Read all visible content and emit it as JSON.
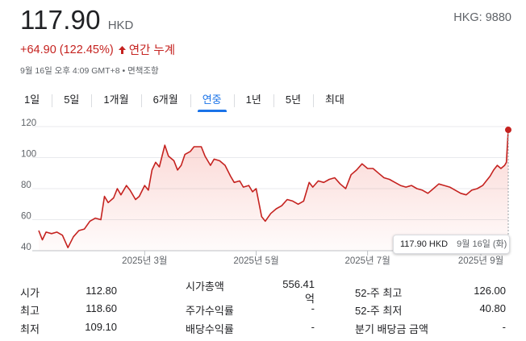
{
  "quote": {
    "price": "117.90",
    "currency": "HKD",
    "ticker": "HKG: 9880",
    "change": "+64.90 (122.45%)",
    "change_period": "연간 누계",
    "timestamp": "9월 16일 오후 4:09 GMT+8 • 면책조항"
  },
  "tabs": [
    {
      "label": "1일"
    },
    {
      "label": "5일"
    },
    {
      "label": "1개월"
    },
    {
      "label": "6개월"
    },
    {
      "label": "연중",
      "active": true
    },
    {
      "label": "1년"
    },
    {
      "label": "5년"
    },
    {
      "label": "최대"
    }
  ],
  "tooltip": {
    "price": "117.90 HKD",
    "date": "9월 16일 (화)"
  },
  "colors": {
    "line": "#c5221f",
    "fill": "#f6d7d6",
    "accent": "#1a73e8",
    "grid": "#dadce0"
  },
  "stats": [
    [
      {
        "label": "시가",
        "value": "112.80"
      },
      {
        "label": "시가총액",
        "value": "556.41억"
      },
      {
        "label": "52-주 최고",
        "value": "126.00"
      }
    ],
    [
      {
        "label": "최고",
        "value": "118.60"
      },
      {
        "label": "주가수익률",
        "value": "-"
      },
      {
        "label": "52-주 최저",
        "value": "40.80"
      }
    ],
    [
      {
        "label": "최저",
        "value": "109.10"
      },
      {
        "label": "배당수익률",
        "value": "-"
      },
      {
        "label": "분기 배당금 금액",
        "value": "-"
      }
    ]
  ],
  "chart_data": {
    "type": "line",
    "y_ticks": [
      40,
      60,
      80,
      100,
      120
    ],
    "ylim": [
      40,
      120
    ],
    "x_ticks": [
      "2025년 3월",
      "2025년 5월",
      "2025년 7월",
      "2025년 9월"
    ],
    "x_tick_dates": [
      "2025-03-01",
      "2025-05-01",
      "2025-07-01",
      "2025-09-01"
    ],
    "xlim": [
      "2025-01-02",
      "2025-09-16"
    ],
    "grid": true,
    "series": [
      {
        "values": [
          [
            "2025-01-02",
            53
          ],
          [
            "2025-01-04",
            47
          ],
          [
            "2025-01-06",
            52
          ],
          [
            "2025-01-09",
            51
          ],
          [
            "2025-01-12",
            52
          ],
          [
            "2025-01-15",
            50
          ],
          [
            "2025-01-18",
            42
          ],
          [
            "2025-01-21",
            49
          ],
          [
            "2025-01-24",
            53
          ],
          [
            "2025-01-27",
            54
          ],
          [
            "2025-01-30",
            59
          ],
          [
            "2025-02-02",
            61
          ],
          [
            "2025-02-05",
            60
          ],
          [
            "2025-02-07",
            75
          ],
          [
            "2025-02-09",
            71
          ],
          [
            "2025-02-12",
            74
          ],
          [
            "2025-02-14",
            80
          ],
          [
            "2025-02-16",
            76
          ],
          [
            "2025-02-19",
            82
          ],
          [
            "2025-02-21",
            79
          ],
          [
            "2025-02-24",
            73
          ],
          [
            "2025-02-26",
            75
          ],
          [
            "2025-03-01",
            82
          ],
          [
            "2025-03-03",
            79
          ],
          [
            "2025-03-05",
            92
          ],
          [
            "2025-03-07",
            97
          ],
          [
            "2025-03-09",
            94
          ],
          [
            "2025-03-12",
            108
          ],
          [
            "2025-03-14",
            101
          ],
          [
            "2025-03-17",
            98
          ],
          [
            "2025-03-19",
            92
          ],
          [
            "2025-03-21",
            95
          ],
          [
            "2025-03-23",
            102
          ],
          [
            "2025-03-26",
            104
          ],
          [
            "2025-03-28",
            107
          ],
          [
            "2025-04-01",
            107
          ],
          [
            "2025-04-03",
            101
          ],
          [
            "2025-04-06",
            95
          ],
          [
            "2025-04-08",
            99
          ],
          [
            "2025-04-11",
            98
          ],
          [
            "2025-04-14",
            95
          ],
          [
            "2025-04-17",
            88
          ],
          [
            "2025-04-19",
            84
          ],
          [
            "2025-04-22",
            85
          ],
          [
            "2025-04-24",
            81
          ],
          [
            "2025-04-27",
            82
          ],
          [
            "2025-04-29",
            78
          ],
          [
            "2025-05-01",
            80
          ],
          [
            "2025-05-04",
            62
          ],
          [
            "2025-05-06",
            59
          ],
          [
            "2025-05-09",
            64
          ],
          [
            "2025-05-12",
            67
          ],
          [
            "2025-05-15",
            69
          ],
          [
            "2025-05-18",
            73
          ],
          [
            "2025-05-21",
            72
          ],
          [
            "2025-05-24",
            70
          ],
          [
            "2025-05-27",
            72
          ],
          [
            "2025-05-30",
            84
          ],
          [
            "2025-06-01",
            81
          ],
          [
            "2025-06-04",
            85
          ],
          [
            "2025-06-07",
            84
          ],
          [
            "2025-06-10",
            86
          ],
          [
            "2025-06-13",
            87
          ],
          [
            "2025-06-16",
            83
          ],
          [
            "2025-06-19",
            80
          ],
          [
            "2025-06-22",
            89
          ],
          [
            "2025-06-25",
            92
          ],
          [
            "2025-06-28",
            96
          ],
          [
            "2025-07-01",
            93
          ],
          [
            "2025-07-04",
            93
          ],
          [
            "2025-07-07",
            90
          ],
          [
            "2025-07-10",
            87
          ],
          [
            "2025-07-13",
            86
          ],
          [
            "2025-07-16",
            84
          ],
          [
            "2025-07-19",
            82
          ],
          [
            "2025-07-22",
            81
          ],
          [
            "2025-07-25",
            82
          ],
          [
            "2025-07-28",
            80
          ],
          [
            "2025-07-31",
            79
          ],
          [
            "2025-08-03",
            77
          ],
          [
            "2025-08-06",
            80
          ],
          [
            "2025-08-09",
            83
          ],
          [
            "2025-08-12",
            82
          ],
          [
            "2025-08-15",
            81
          ],
          [
            "2025-08-18",
            79
          ],
          [
            "2025-08-21",
            77
          ],
          [
            "2025-08-24",
            76
          ],
          [
            "2025-08-27",
            79
          ],
          [
            "2025-08-30",
            80
          ],
          [
            "2025-09-02",
            82
          ],
          [
            "2025-09-04",
            85
          ],
          [
            "2025-09-06",
            88
          ],
          [
            "2025-09-08",
            92
          ],
          [
            "2025-09-10",
            95
          ],
          [
            "2025-09-12",
            93
          ],
          [
            "2025-09-14",
            95
          ],
          [
            "2025-09-15",
            97
          ],
          [
            "2025-09-16",
            117.9
          ]
        ]
      }
    ]
  }
}
